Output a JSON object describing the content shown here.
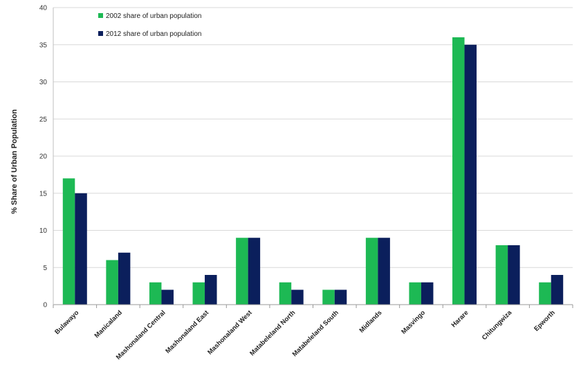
{
  "chart_data": {
    "type": "bar",
    "title": "",
    "xlabel": "",
    "ylabel": "% Share of Urban Population",
    "ylim": [
      0,
      40
    ],
    "yticks": [
      0,
      5,
      10,
      15,
      20,
      25,
      30,
      35,
      40
    ],
    "grid": true,
    "legend_position": "top-left",
    "categories": [
      "Bulawayo",
      "Manicaland",
      "Mashonaland Central",
      "Mashonaland East",
      "Mashonaland West",
      "Matabeleland North",
      "Matabeleland South",
      "Midlands",
      "Masvingo",
      "Harare",
      "Chitungwiza",
      "Epworth"
    ],
    "series": [
      {
        "name": "2002 share of urban population",
        "color": "#1db954",
        "values": [
          17,
          6,
          3,
          3,
          9,
          3,
          2,
          9,
          3,
          36,
          8,
          3
        ]
      },
      {
        "name": "2012 share of urban population",
        "color": "#0b1f5c",
        "values": [
          15,
          7,
          2,
          4,
          9,
          2,
          2,
          9,
          3,
          35,
          8,
          4
        ]
      }
    ]
  }
}
